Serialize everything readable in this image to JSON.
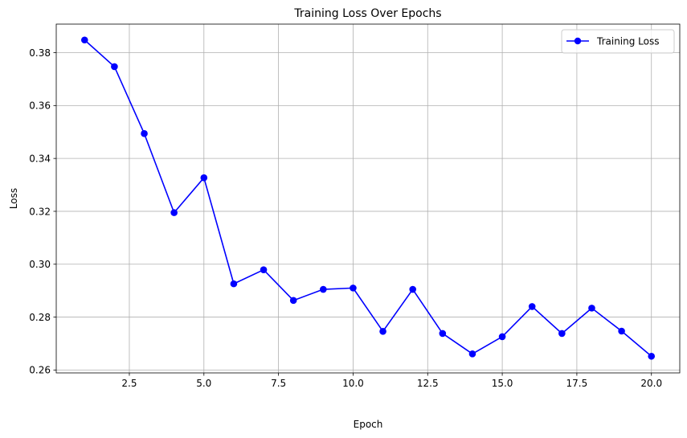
{
  "chart_data": {
    "type": "line",
    "title": "Training Loss Over Epochs",
    "xlabel": "Epoch",
    "ylabel": "Loss",
    "xlim": [
      0.05,
      20.95
    ],
    "ylim": [
      0.2589,
      0.3908
    ],
    "xticks": [
      2.5,
      5.0,
      7.5,
      10.0,
      12.5,
      15.0,
      17.5,
      20.0
    ],
    "xtick_labels": [
      "2.5",
      "5.0",
      "7.5",
      "10.0",
      "12.5",
      "15.0",
      "17.5",
      "20.0"
    ],
    "yticks": [
      0.26,
      0.28,
      0.3,
      0.32,
      0.34,
      0.36,
      0.38
    ],
    "ytick_labels": [
      "0.26",
      "0.28",
      "0.30",
      "0.32",
      "0.34",
      "0.36",
      "0.38"
    ],
    "grid": true,
    "legend_position": "top-right",
    "series": [
      {
        "name": "Training Loss",
        "color": "#0000ff",
        "marker": "circle",
        "x": [
          1,
          2,
          3,
          4,
          5,
          6,
          7,
          8,
          9,
          10,
          11,
          12,
          13,
          14,
          15,
          16,
          17,
          18,
          19,
          20
        ],
        "values": [
          0.3848,
          0.3747,
          0.3494,
          0.3195,
          0.3327,
          0.2926,
          0.2979,
          0.2863,
          0.2905,
          0.291,
          0.2746,
          0.2905,
          0.2738,
          0.2661,
          0.2726,
          0.284,
          0.2738,
          0.2834,
          0.2747,
          0.2652
        ]
      }
    ]
  }
}
